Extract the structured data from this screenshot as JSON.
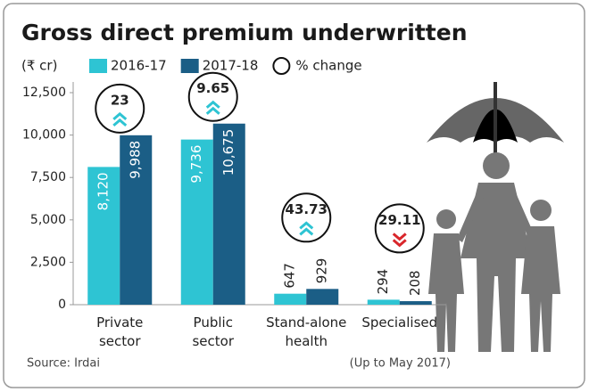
{
  "chart_data": {
    "type": "bar",
    "title": "Gross direct premium underwritten",
    "unit": "(₹ cr)",
    "categories": [
      "Private sector",
      "Public sector",
      "Stand-alone health",
      "Specialised"
    ],
    "series": [
      {
        "name": "2016-17",
        "color": "#2ec4d3",
        "values": [
          8120,
          9736,
          647,
          294
        ],
        "value_labels": [
          "8,120",
          "9,736",
          "647",
          "294"
        ]
      },
      {
        "name": "2017-18",
        "color": "#1b5e86",
        "values": [
          9988,
          10675,
          929,
          208
        ],
        "value_labels": [
          "9,988",
          "10,675",
          "929",
          "208"
        ]
      }
    ],
    "pct_change": {
      "name": "% change",
      "values": [
        23,
        9.65,
        43.73,
        29.11
      ],
      "direction": [
        "up",
        "up",
        "up",
        "down"
      ],
      "up_color": "#2ec4d3",
      "down_color": "#d9262b"
    },
    "ylim": [
      0,
      12500
    ],
    "yticks": [
      0,
      {
        "value": 2500,
        "label": "2,500"
      },
      {
        "value": 5000,
        "label": "5,000"
      },
      {
        "value": 7500,
        "label": "7,500"
      },
      {
        "value": 10000,
        "label": "10,000"
      },
      {
        "value": 12500,
        "label": "12,500"
      }
    ],
    "grid": false,
    "source": "Source: Irdai",
    "note": "(Up to May 2017)"
  }
}
